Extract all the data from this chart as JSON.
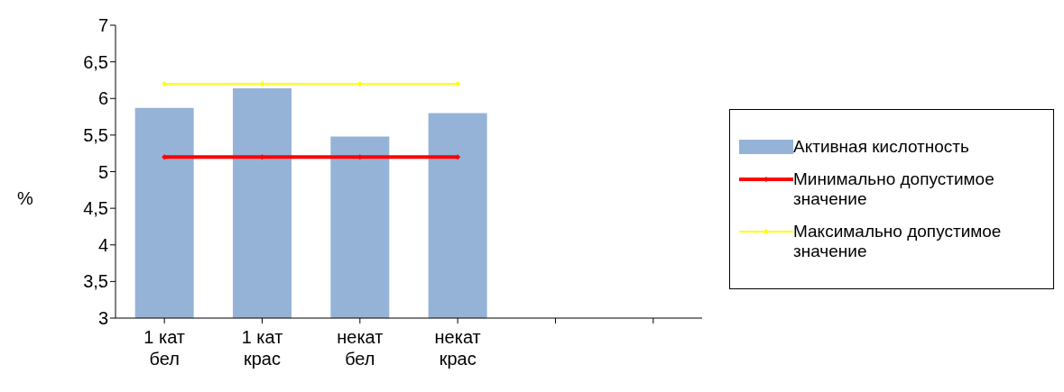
{
  "chart_data": {
    "type": "bar",
    "ylabel": "%",
    "categories": [
      "1 кат бел",
      "1 кат крас",
      "некат бел",
      "некат крас",
      null,
      null
    ],
    "series": [
      {
        "name": "Активная кислотность",
        "color": "#95b3d7",
        "values": [
          5.87,
          6.14,
          5.48,
          5.8,
          null,
          null
        ]
      },
      {
        "name": "Минимально допустимое значение",
        "type": "line",
        "color": "#ff0000",
        "values": [
          5.2,
          5.2,
          5.2,
          5.2,
          null,
          null
        ]
      },
      {
        "name": "Максимально допустимое значение",
        "type": "line",
        "color": "#ffff00",
        "values": [
          6.2,
          6.2,
          6.2,
          6.2,
          null,
          null
        ]
      }
    ],
    "ylim": [
      3,
      7
    ],
    "yticks": [
      3,
      {
        "value": 3.5,
        "label": "3,5"
      },
      4,
      {
        "value": 4.5,
        "label": "4,5"
      },
      5,
      {
        "value": 5.5,
        "label": "5,5"
      },
      6,
      {
        "value": 6.5,
        "label": "6,5"
      },
      7
    ],
    "grid": false,
    "legend": "right",
    "marker": "diamond",
    "line_style": "solid"
  }
}
